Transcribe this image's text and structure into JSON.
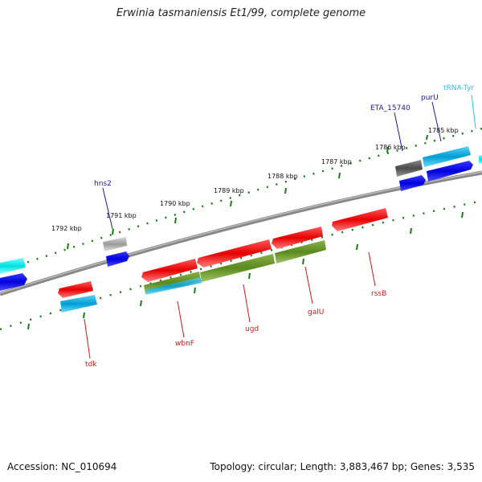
{
  "title": "Erwinia tasmaniensis Et1/99, complete genome",
  "footer": {
    "accession": "Accession: NC_010694",
    "summary": "Topology: circular; Length: 3,883,467 bp; Genes: 3,535"
  },
  "tick_labels": [
    "1785 kbp",
    "1786 kbp",
    "1787 kbp",
    "1788 kbp",
    "1789 kbp",
    "1790 kbp",
    "1791 kbp",
    "1792 kbp"
  ],
  "gene_labels": {
    "trna_tyr": "tRNA-Tyr",
    "purU": "purU",
    "eta_15740": "ETA_15740",
    "hns2": "hns2",
    "rssB": "rssB",
    "galU": "galU",
    "ugd": "ugd",
    "wbnF": "wbnF",
    "tdk": "tdk"
  },
  "colors": {
    "cds_forward": "#0000ee",
    "cds_reverse": "#ee0000",
    "gene": "#00b4e6",
    "rna": "#00e6e6",
    "pseudo": "#a0a0a0",
    "misc_feature": "#5a5a5a",
    "reverse_track_2": "#5a8a1e",
    "ticks": "#1a7a1a",
    "backbone": "#888888"
  }
}
